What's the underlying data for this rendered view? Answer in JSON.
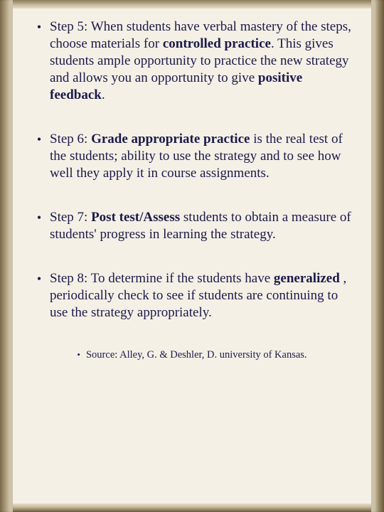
{
  "background_color": "#f5f0e6",
  "text_color": "#1a1a4a",
  "font_family": "Times New Roman",
  "body_fontsize": 19,
  "line_height": 24,
  "bullet_char": "•",
  "items": [
    {
      "runs": [
        {
          "t": "Step 5: When students have verbal mastery of the steps, choose materials for ",
          "b": false
        },
        {
          "t": "controlled practice",
          "b": true
        },
        {
          "t": ". This gives students ample opportunity to practice the new strategy and allows you an opportunity to give ",
          "b": false
        },
        {
          "t": "positive feedback",
          "b": true
        },
        {
          "t": ".",
          "b": false
        }
      ]
    },
    {
      "runs": [
        {
          "t": "Step 6: ",
          "b": false
        },
        {
          "t": "Grade appropriate practice",
          "b": true
        },
        {
          "t": " is the real test of the students; ability to use the strategy and to see how well they apply it in course assignments.",
          "b": false
        }
      ]
    },
    {
      "runs": [
        {
          "t": "Step 7: ",
          "b": false
        },
        {
          "t": "Post test/Assess",
          "b": true
        },
        {
          "t": " students to obtain a measure of students' progress in learning the strategy.",
          "b": false
        }
      ]
    },
    {
      "runs": [
        {
          "t": "Step 8: To determine if the students have ",
          "b": false
        },
        {
          "t": "generalized",
          "b": true
        },
        {
          "t": " , periodically check to see if students are continuing to use the strategy appropriately.",
          "b": false
        }
      ]
    }
  ],
  "source": {
    "bullet": "•",
    "text": "Source: Alley, G.  & Deshler, D. university of Kansas.",
    "fontsize": 14.5
  }
}
